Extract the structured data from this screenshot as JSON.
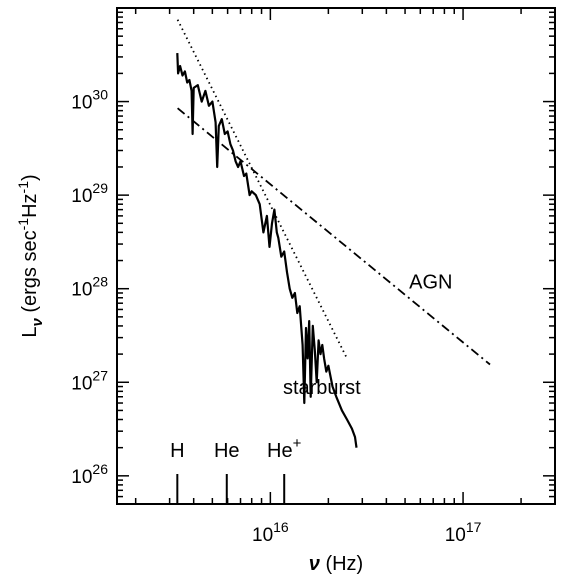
{
  "chart_data": {
    "type": "line",
    "title": "",
    "x_axis": {
      "scale": "log",
      "range": [
        1600000000000000.0,
        3e+17
      ],
      "label": {
        "symbol": "ν",
        "unit": " (Hz)"
      },
      "major_ticks": [
        {
          "value": 1e+16,
          "base": "10",
          "exp": "16"
        },
        {
          "value": 1e+17,
          "base": "10",
          "exp": "17"
        }
      ]
    },
    "y_axis": {
      "scale": "log",
      "range": [
        5e+25,
        1e+31
      ],
      "label": {
        "main": "L",
        "sub": "ν",
        "unit_a": " (ergs sec",
        "unit_a_exp": "-1",
        "unit_b": "Hz",
        "unit_b_exp": "-1",
        "unit_close": ")"
      },
      "major_ticks": [
        {
          "value": 1e+26,
          "base": "10",
          "exp": "26"
        },
        {
          "value": 1e+27,
          "base": "10",
          "exp": "27"
        },
        {
          "value": 1e+28,
          "base": "10",
          "exp": "28"
        },
        {
          "value": 1e+29,
          "base": "10",
          "exp": "29"
        },
        {
          "value": 1e+30,
          "base": "10",
          "exp": "30"
        }
      ]
    },
    "grid": false,
    "series": [
      {
        "name": "starburst",
        "style": "solid",
        "points": [
          [
            3290000000000000.0,
            3.3e+30
          ],
          [
            3320000000000000.0,
            2e+30
          ],
          [
            3400000000000000.0,
            2.4e+30
          ],
          [
            3500000000000000.0,
            1.9e+30
          ],
          [
            3600000000000000.0,
            2.1e+30
          ],
          [
            3700000000000000.0,
            1.6e+30
          ],
          [
            3800000000000000.0,
            1.7e+30
          ],
          [
            3900000000000000.0,
            1.3e+30
          ],
          [
            3950000000000000.0,
            4.5e+29
          ],
          [
            4000000000000000.0,
            1.4e+30
          ],
          [
            4200000000000000.0,
            1.5e+30
          ],
          [
            4400000000000000.0,
            1e+30
          ],
          [
            4600000000000000.0,
            1.3e+30
          ],
          [
            4800000000000000.0,
            9e+29
          ],
          [
            5000000000000000.0,
            1e+30
          ],
          [
            5200000000000000.0,
            6e+29
          ],
          [
            5300000000000000.0,
            2e+29
          ],
          [
            5400000000000000.0,
            5.5e+29
          ],
          [
            5600000000000000.0,
            6.5e+29
          ],
          [
            5800000000000000.0,
            4.5e+29
          ],
          [
            6000000000000000.0,
            4.8e+29
          ],
          [
            6200000000000000.0,
            3.5e+29
          ],
          [
            6400000000000000.0,
            3e+29
          ],
          [
            6600000000000000.0,
            2.3e+29
          ],
          [
            6800000000000000.0,
            2e+29
          ],
          [
            7000000000000000.0,
            2.3e+29
          ],
          [
            7300000000000000.0,
            1.6e+29
          ],
          [
            7500000000000000.0,
            1.7e+29
          ],
          [
            7800000000000000.0,
            1e+29
          ],
          [
            8000000000000000.0,
            1.1e+29
          ],
          [
            8400000000000000.0,
            1e+29
          ],
          [
            8800000000000000.0,
            8e+28
          ],
          [
            9200000000000000.0,
            4e+28
          ],
          [
            9600000000000000.0,
            6e+28
          ],
          [
            9900000000000000.0,
            2.8e+28
          ],
          [
            1.02e+16,
            5e+28
          ],
          [
            1.05e+16,
            7e+28
          ],
          [
            1.08e+16,
            4e+28
          ],
          [
            1.1e+16,
            3.5e+28
          ],
          [
            1.14e+16,
            2.2e+28
          ],
          [
            1.18e+16,
            2.5e+28
          ],
          [
            1.22e+16,
            1.5e+28
          ],
          [
            1.26e+16,
            1e+28
          ],
          [
            1.3e+16,
            8e+27
          ],
          [
            1.34e+16,
            9e+27
          ],
          [
            1.38e+16,
            5.5e+27
          ],
          [
            1.42e+16,
            6.5e+27
          ],
          [
            1.47e+16,
            2.5e+27
          ],
          [
            1.5e+16,
            6e+26
          ],
          [
            1.53e+16,
            3.8e+27
          ],
          [
            1.56e+16,
            1.8e+27
          ],
          [
            1.59e+16,
            4.5e+27
          ],
          [
            1.62e+16,
            7e+26
          ],
          [
            1.66e+16,
            4e+27
          ],
          [
            1.7e+16,
            2.2e+27
          ],
          [
            1.74e+16,
            1e+27
          ],
          [
            1.78e+16,
            2.8e+27
          ],
          [
            1.82e+16,
            2e+27
          ],
          [
            1.86e+16,
            2.5e+27
          ],
          [
            1.9e+16,
            1.8e+27
          ],
          [
            1.95e+16,
            1.3e+27
          ],
          [
            2e+16,
            1.5e+27
          ],
          [
            2.1e+16,
            9e+26
          ],
          [
            2.2e+16,
            7e+26
          ],
          [
            2.35e+16,
            5e+26
          ],
          [
            2.5e+16,
            4e+26
          ],
          [
            2.65e+16,
            3.2e+26
          ],
          [
            2.75e+16,
            2.6e+26
          ],
          [
            2.8e+16,
            2e+26
          ]
        ]
      },
      {
        "name": "AGN",
        "style": "dash-dot",
        "points": [
          [
            3300000000000000.0,
            8.5e+29
          ],
          [
            1.38e+17,
            1.55e+27
          ]
        ]
      },
      {
        "name": "",
        "style": "dotted",
        "points": [
          [
            3300000000000000.0,
            7.5e+30
          ],
          [
            2.5e+16,
            1.8e+27
          ]
        ]
      }
    ],
    "annotations": [
      {
        "text": "AGN",
        "x": 6.8e+16,
        "y": 1e+28
      },
      {
        "text": "starburst",
        "x": 1.85e+16,
        "y": 7.5e+26
      }
    ],
    "edge_markers": [
      {
        "label": "H",
        "superscript": "",
        "x": 3290000000000000.0
      },
      {
        "label": "He",
        "superscript": "",
        "x": 5940000000000000.0
      },
      {
        "label": "He",
        "superscript": "+",
        "x": 1.18e+16
      }
    ]
  }
}
